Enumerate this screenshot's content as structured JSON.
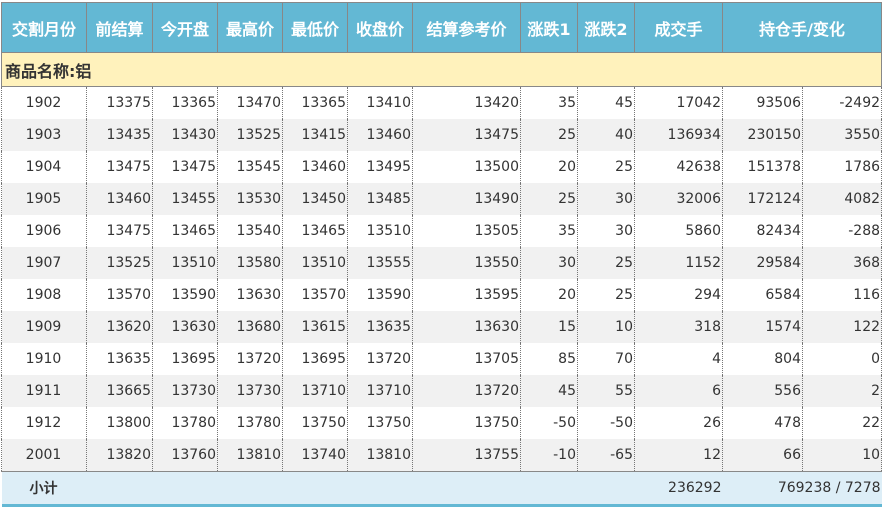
{
  "headers": [
    "交割月份",
    "前结算",
    "今开盘",
    "最高价",
    "最低价",
    "收盘价",
    "结算参考价",
    "涨跌1",
    "涨跌2",
    "成交手",
    "持仓手/变化"
  ],
  "product_label": "商品名称:铝",
  "rows": [
    [
      "1902",
      "13375",
      "13365",
      "13470",
      "13365",
      "13410",
      "13420",
      "35",
      "45",
      "17042",
      "93506",
      "-2492"
    ],
    [
      "1903",
      "13435",
      "13430",
      "13525",
      "13415",
      "13460",
      "13475",
      "25",
      "40",
      "136934",
      "230150",
      "3550"
    ],
    [
      "1904",
      "13475",
      "13475",
      "13545",
      "13460",
      "13495",
      "13500",
      "20",
      "25",
      "42638",
      "151378",
      "1786"
    ],
    [
      "1905",
      "13460",
      "13455",
      "13530",
      "13450",
      "13485",
      "13490",
      "25",
      "30",
      "32006",
      "172124",
      "4082"
    ],
    [
      "1906",
      "13475",
      "13465",
      "13540",
      "13465",
      "13510",
      "13505",
      "35",
      "30",
      "5860",
      "82434",
      "-288"
    ],
    [
      "1907",
      "13525",
      "13510",
      "13580",
      "13510",
      "13555",
      "13550",
      "30",
      "25",
      "1152",
      "29584",
      "368"
    ],
    [
      "1908",
      "13570",
      "13590",
      "13630",
      "13570",
      "13590",
      "13595",
      "20",
      "25",
      "294",
      "6584",
      "116"
    ],
    [
      "1909",
      "13620",
      "13630",
      "13680",
      "13615",
      "13635",
      "13630",
      "15",
      "10",
      "318",
      "1574",
      "122"
    ],
    [
      "1910",
      "13635",
      "13695",
      "13720",
      "13695",
      "13720",
      "13705",
      "85",
      "70",
      "4",
      "804",
      "0"
    ],
    [
      "1911",
      "13665",
      "13730",
      "13730",
      "13710",
      "13710",
      "13720",
      "45",
      "55",
      "6",
      "556",
      "2"
    ],
    [
      "1912",
      "13800",
      "13780",
      "13780",
      "13750",
      "13750",
      "13750",
      "-50",
      "-50",
      "26",
      "478",
      "22"
    ],
    [
      "2001",
      "13820",
      "13760",
      "13810",
      "13740",
      "13810",
      "13755",
      "-10",
      "-65",
      "12",
      "66",
      "10"
    ]
  ],
  "subtotal": {
    "label": "小计",
    "volume": "236292",
    "open_interest": "769238 / 7278"
  },
  "colors": {
    "header": "#63b8d4",
    "product_row": "#fff2bc",
    "subtotal": "#ddeef7"
  }
}
